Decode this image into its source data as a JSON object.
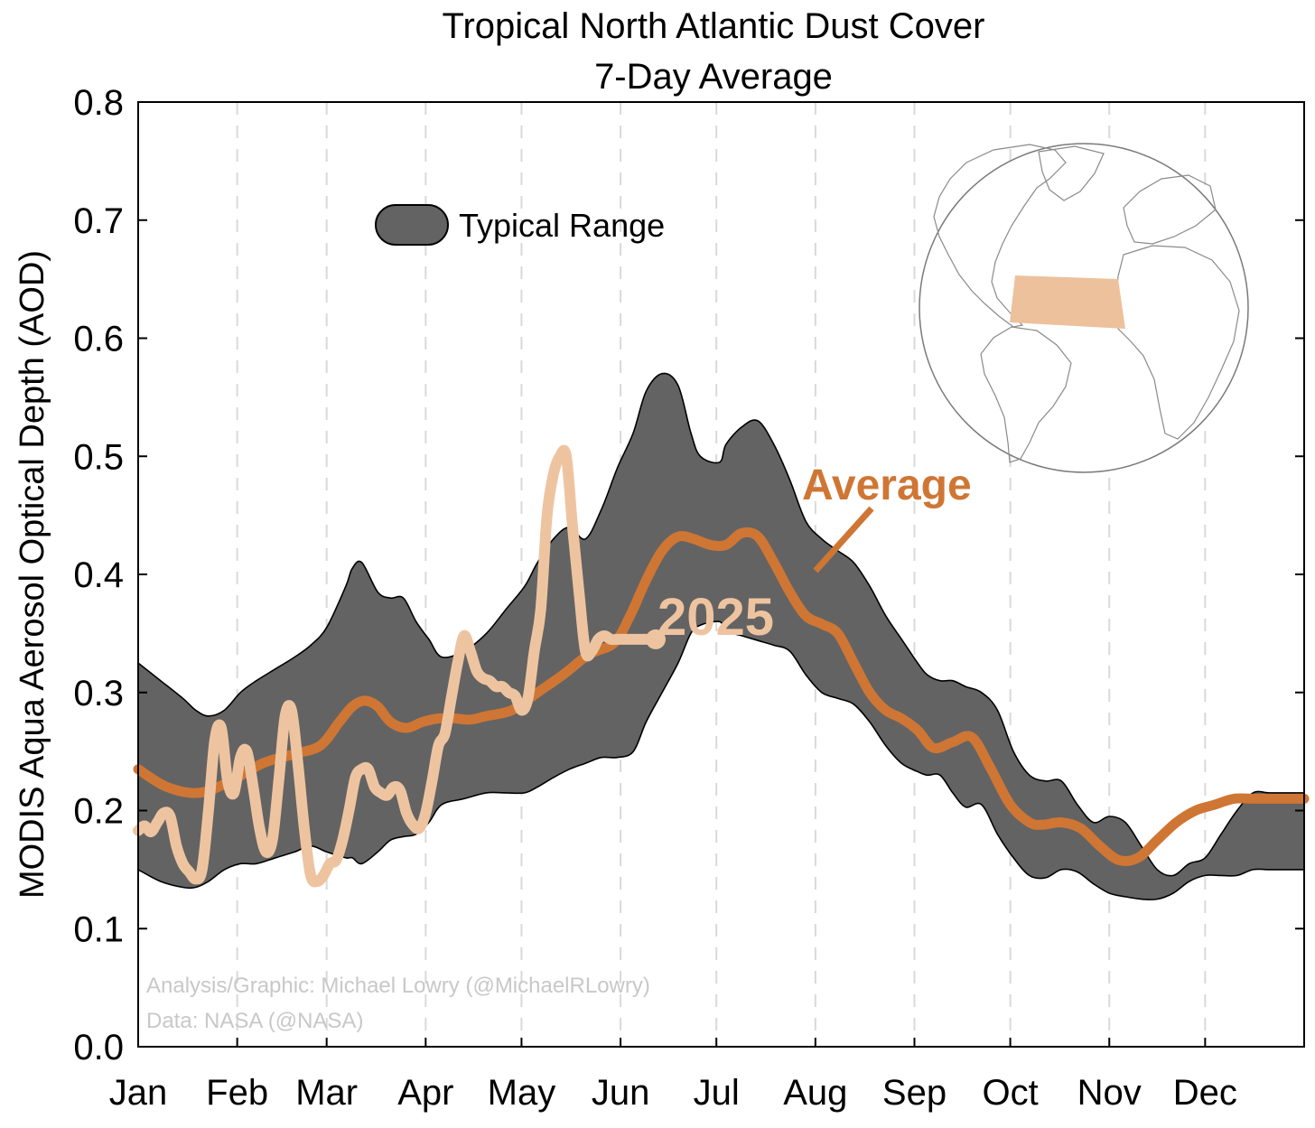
{
  "chart_data": {
    "type": "line",
    "title": "Tropical North Atlantic Dust Cover",
    "subtitle": "7-Day Average",
    "ylabel": "MODIS Aqua Aerosol Optical Depth (AOD)",
    "xlabel": "",
    "ylim": [
      0.0,
      0.8
    ],
    "yticks": [
      "0.0",
      "0.1",
      "0.2",
      "0.3",
      "0.4",
      "0.5",
      "0.6",
      "0.7",
      "0.8"
    ],
    "xlim": [
      1,
      366
    ],
    "xticks": [
      {
        "label": "Jan",
        "day": 1
      },
      {
        "label": "Feb",
        "day": 32
      },
      {
        "label": "Mar",
        "day": 60
      },
      {
        "label": "Apr",
        "day": 91
      },
      {
        "label": "May",
        "day": 121
      },
      {
        "label": "Jun",
        "day": 152
      },
      {
        "label": "Jul",
        "day": 182
      },
      {
        "label": "Aug",
        "day": 213
      },
      {
        "label": "Sep",
        "day": 244
      },
      {
        "label": "Oct",
        "day": 274
      },
      {
        "label": "Nov",
        "day": 305
      },
      {
        "label": "Dec",
        "day": 335
      }
    ],
    "grid": "vertical dashed at month starts",
    "legend": {
      "label": "Typical Range",
      "placement": "top-left"
    },
    "credits": [
      "Analysis/Graphic: Michael Lowry (@MichaelRLowry)",
      "Data: NASA (@NASA)"
    ],
    "colors": {
      "range": "#636363",
      "average": "#CF7634",
      "year": "#EEC4A0",
      "inset_box": "#ECC19C"
    },
    "inset": "globe map with highlighted tropical North Atlantic box",
    "range": {
      "name": "Typical Range",
      "x": [
        1,
        8,
        15,
        19,
        23,
        28,
        33,
        38,
        44,
        50,
        55,
        60,
        66,
        68,
        71,
        76,
        80,
        84,
        88,
        92,
        96,
        103,
        110,
        116,
        122,
        126,
        131,
        136,
        141,
        146,
        151,
        156,
        160,
        165,
        170,
        174,
        177,
        183,
        185,
        190,
        195,
        200,
        205,
        210,
        215,
        220,
        225,
        230,
        235,
        240,
        245,
        248,
        252,
        256,
        260,
        265,
        270,
        275,
        280,
        285,
        290,
        295,
        300,
        305,
        310,
        315,
        320,
        325,
        330,
        335,
        340,
        345,
        350,
        355,
        360,
        366
      ],
      "upper": [
        0.325,
        0.31,
        0.295,
        0.285,
        0.28,
        0.285,
        0.3,
        0.31,
        0.32,
        0.33,
        0.34,
        0.355,
        0.39,
        0.405,
        0.41,
        0.385,
        0.38,
        0.38,
        0.36,
        0.345,
        0.33,
        0.335,
        0.35,
        0.37,
        0.39,
        0.41,
        0.43,
        0.44,
        0.43,
        0.455,
        0.49,
        0.52,
        0.555,
        0.57,
        0.56,
        0.52,
        0.5,
        0.495,
        0.51,
        0.525,
        0.53,
        0.51,
        0.48,
        0.445,
        0.43,
        0.42,
        0.41,
        0.39,
        0.365,
        0.345,
        0.325,
        0.315,
        0.31,
        0.31,
        0.305,
        0.3,
        0.285,
        0.25,
        0.23,
        0.225,
        0.225,
        0.205,
        0.19,
        0.195,
        0.19,
        0.17,
        0.15,
        0.145,
        0.155,
        0.16,
        0.18,
        0.2,
        0.215,
        0.215,
        0.215,
        0.215
      ],
      "lower": [
        0.15,
        0.14,
        0.135,
        0.135,
        0.14,
        0.15,
        0.155,
        0.155,
        0.16,
        0.165,
        0.17,
        0.165,
        0.16,
        0.16,
        0.155,
        0.165,
        0.175,
        0.178,
        0.18,
        0.19,
        0.205,
        0.21,
        0.215,
        0.215,
        0.215,
        0.22,
        0.228,
        0.235,
        0.24,
        0.245,
        0.245,
        0.25,
        0.275,
        0.3,
        0.325,
        0.35,
        0.357,
        0.36,
        0.352,
        0.348,
        0.344,
        0.34,
        0.335,
        0.315,
        0.3,
        0.295,
        0.29,
        0.275,
        0.255,
        0.24,
        0.233,
        0.23,
        0.23,
        0.215,
        0.203,
        0.205,
        0.18,
        0.16,
        0.145,
        0.143,
        0.15,
        0.148,
        0.138,
        0.13,
        0.127,
        0.125,
        0.125,
        0.13,
        0.14,
        0.145,
        0.145,
        0.145,
        0.15,
        0.15,
        0.15,
        0.15
      ]
    },
    "series": [
      {
        "name": "Average",
        "x": [
          1,
          10,
          20,
          30,
          40,
          50,
          58,
          64,
          68,
          72,
          76,
          80,
          85,
          90,
          95,
          100,
          105,
          110,
          118,
          126,
          134,
          142,
          150,
          155,
          160,
          165,
          170,
          175,
          180,
          185,
          190,
          195,
          200,
          205,
          210,
          215,
          220,
          225,
          230,
          235,
          240,
          245,
          250,
          256,
          262,
          268,
          274,
          280,
          284,
          290,
          296,
          302,
          308,
          314,
          320,
          326,
          332,
          338,
          344,
          350,
          356,
          362,
          366
        ],
        "values": [
          0.235,
          0.22,
          0.215,
          0.225,
          0.24,
          0.248,
          0.255,
          0.275,
          0.288,
          0.293,
          0.288,
          0.275,
          0.27,
          0.275,
          0.278,
          0.278,
          0.277,
          0.28,
          0.285,
          0.3,
          0.315,
          0.332,
          0.342,
          0.365,
          0.395,
          0.42,
          0.432,
          0.43,
          0.425,
          0.425,
          0.435,
          0.432,
          0.41,
          0.385,
          0.365,
          0.358,
          0.35,
          0.325,
          0.3,
          0.285,
          0.278,
          0.268,
          0.253,
          0.258,
          0.262,
          0.235,
          0.205,
          0.19,
          0.188,
          0.19,
          0.185,
          0.17,
          0.158,
          0.16,
          0.175,
          0.19,
          0.2,
          0.205,
          0.21,
          0.21,
          0.21,
          0.21,
          0.21
        ]
      },
      {
        "name": "2025",
        "x": [
          1,
          3,
          5,
          7,
          9,
          11,
          13,
          15,
          17,
          19,
          21,
          23,
          25,
          27,
          29,
          31,
          33,
          35,
          37,
          39,
          41,
          43,
          45,
          47,
          49,
          51,
          53,
          55,
          57,
          59,
          61,
          63,
          65,
          67,
          69,
          71,
          73,
          75,
          77,
          79,
          81,
          83,
          85,
          87,
          89,
          91,
          93,
          95,
          97,
          99,
          101,
          103,
          105,
          107,
          109,
          111,
          113,
          115,
          117,
          119,
          121,
          123,
          125,
          127,
          129,
          131,
          133,
          135,
          137,
          139,
          141,
          143,
          145,
          147,
          149,
          151,
          153,
          155,
          157,
          159,
          161,
          163
        ],
        "values": [
          0.183,
          0.187,
          0.182,
          0.19,
          0.198,
          0.195,
          0.17,
          0.155,
          0.148,
          0.142,
          0.15,
          0.2,
          0.26,
          0.27,
          0.225,
          0.215,
          0.245,
          0.25,
          0.22,
          0.185,
          0.165,
          0.175,
          0.225,
          0.28,
          0.285,
          0.24,
          0.185,
          0.145,
          0.14,
          0.145,
          0.155,
          0.158,
          0.175,
          0.2,
          0.228,
          0.235,
          0.235,
          0.22,
          0.215,
          0.213,
          0.22,
          0.217,
          0.198,
          0.188,
          0.185,
          0.198,
          0.225,
          0.255,
          0.265,
          0.295,
          0.325,
          0.348,
          0.335,
          0.318,
          0.312,
          0.31,
          0.305,
          0.305,
          0.3,
          0.297,
          0.285,
          0.295,
          0.335,
          0.37,
          0.45,
          0.485,
          0.5,
          0.5,
          0.44,
          0.385,
          0.335,
          0.335,
          0.345,
          0.348,
          0.345,
          0.345,
          0.345,
          0.345,
          0.345,
          0.345,
          0.345,
          0.345
        ]
      }
    ],
    "annotations": [
      {
        "text": "Average",
        "color": "#CF7634"
      },
      {
        "text": "2025",
        "color": "#EEC4A0"
      }
    ]
  }
}
